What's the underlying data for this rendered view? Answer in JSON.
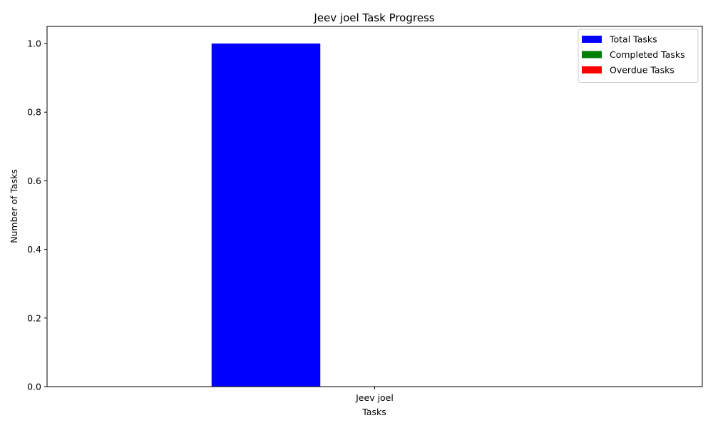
{
  "chart_data": {
    "type": "bar",
    "title": "Jeev joel Task Progress",
    "xlabel": "Tasks",
    "ylabel": "Number of Tasks",
    "categories": [
      "Jeev joel"
    ],
    "series": [
      {
        "name": "Total Tasks",
        "values": [
          1
        ],
        "color": "#0000ff"
      },
      {
        "name": "Completed Tasks",
        "values": [
          0
        ],
        "color": "#008000"
      },
      {
        "name": "Overdue Tasks",
        "values": [
          0
        ],
        "color": "#ff0000"
      }
    ],
    "ylim": [
      0,
      1.05
    ],
    "yticks": [
      0.0,
      0.2,
      0.4,
      0.6,
      0.8,
      1.0
    ],
    "ytick_labels": [
      "0.0",
      "0.2",
      "0.4",
      "0.6",
      "0.8",
      "1.0"
    ],
    "grid": false,
    "legend_position": "top-right"
  }
}
